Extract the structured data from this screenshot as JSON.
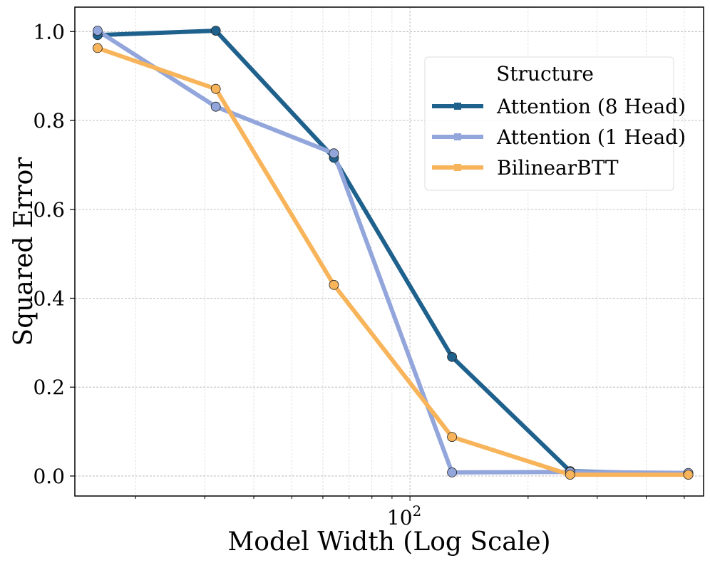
{
  "chart_data": {
    "type": "line",
    "xscale": "log",
    "x": [
      16,
      32,
      64,
      128,
      256,
      512
    ],
    "xlabel": "Model Width (Log Scale)",
    "ylabel": "Squared Error",
    "xlim": [
      14,
      560
    ],
    "ylim": [
      -0.045,
      1.055
    ],
    "x_ticks": [
      {
        "value": 100,
        "base": "10",
        "exp": "2"
      }
    ],
    "y_ticks": [
      0.0,
      0.2,
      0.4,
      0.6,
      0.8,
      1.0
    ],
    "y_tick_labels": [
      "0.0",
      "0.2",
      "0.4",
      "0.6",
      "0.8",
      "1.0"
    ],
    "grid": true,
    "legend": {
      "title": "Structure",
      "location": "upper right"
    },
    "series": [
      {
        "name": "Attention (8 Head)",
        "color": "#1f618d",
        "values": [
          0.992,
          1.002,
          0.716,
          0.268,
          0.011,
          0.004
        ]
      },
      {
        "name": "Attention (1 Head)",
        "color": "#93a6dc",
        "values": [
          1.002,
          0.831,
          0.726,
          0.008,
          0.009,
          0.007
        ]
      },
      {
        "name": "BilinearBTT",
        "color": "#f8b45a",
        "values": [
          0.963,
          0.871,
          0.43,
          0.088,
          0.003,
          0.003
        ]
      }
    ]
  }
}
